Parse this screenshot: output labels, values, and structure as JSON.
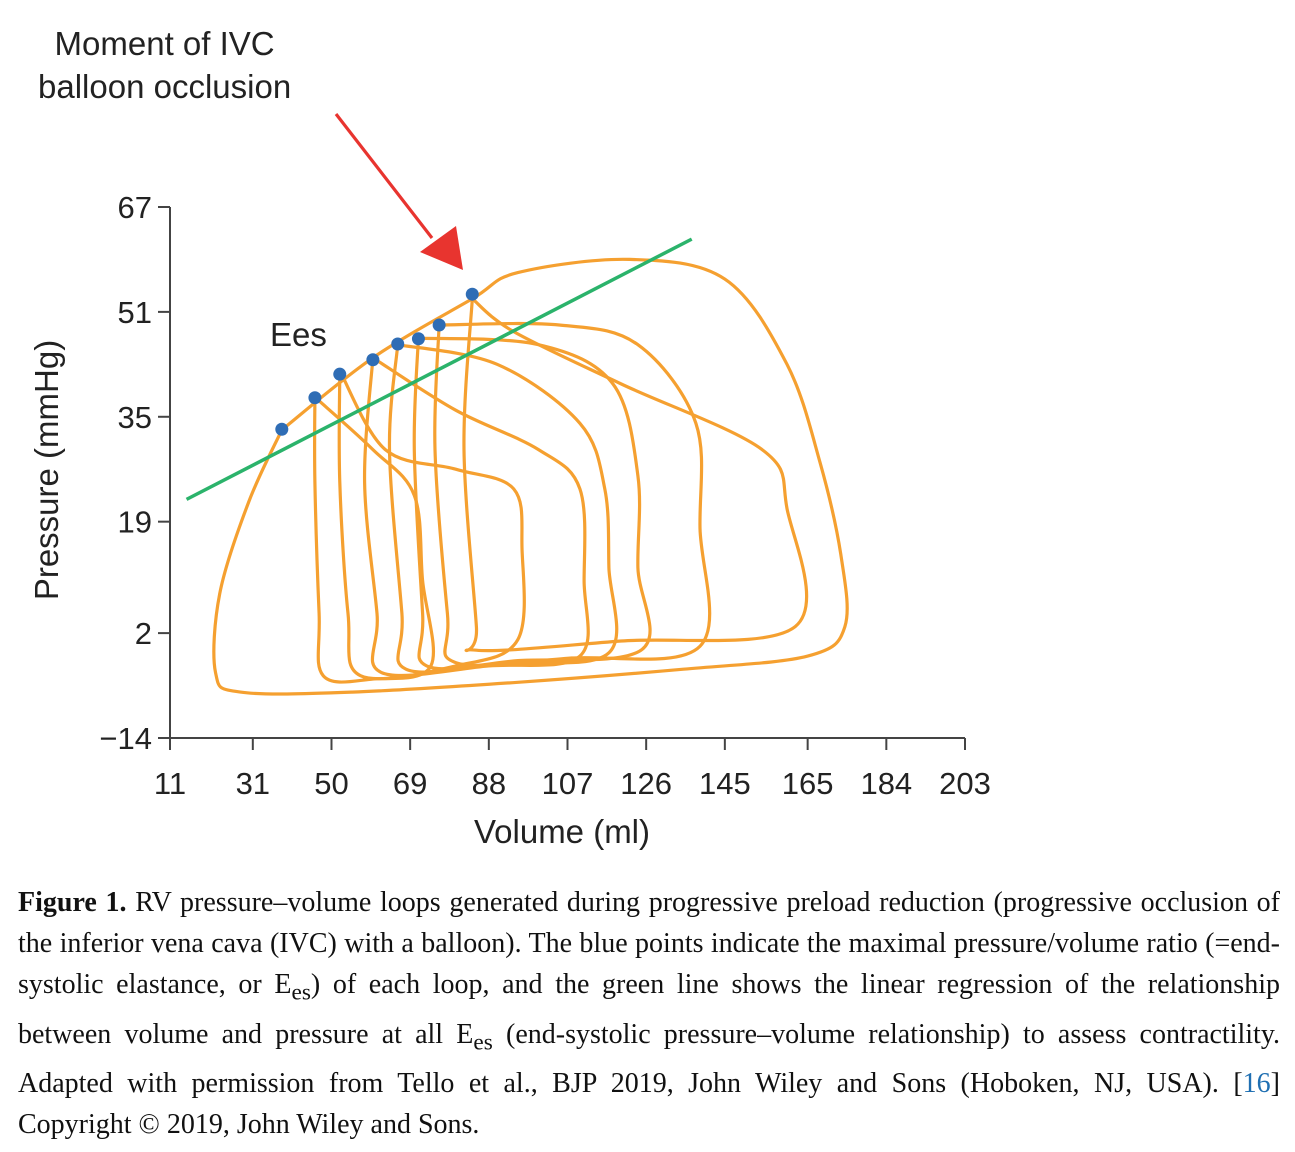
{
  "chart_data": {
    "type": "line",
    "title": "",
    "xlabel": "Volume (ml)",
    "ylabel": "Pressure (mmHg)",
    "x_ticks": [
      "11",
      "31",
      "50",
      "69",
      "88",
      "107",
      "126",
      "145",
      "165",
      "184",
      "203"
    ],
    "y_ticks": [
      "67",
      "51",
      "35",
      "19",
      "2",
      "−14"
    ],
    "xlim": [
      11,
      203
    ],
    "ylim": [
      -14,
      67
    ],
    "annotation": "Moment of IVC balloon occlusion",
    "line_label": "Ees",
    "colors": {
      "loops": "#f5a030",
      "espvr": "#2bb36b",
      "points": "#2f6db5",
      "arrow": "#e8342f",
      "axis": "#444444"
    },
    "espvr_line": {
      "x": [
        15,
        137
      ],
      "y": [
        22.4,
        62.1
      ]
    },
    "ees_points": [
      {
        "volume": 38,
        "pressure": 33.1
      },
      {
        "volume": 46,
        "pressure": 37.9
      },
      {
        "volume": 52,
        "pressure": 41.5
      },
      {
        "volume": 60,
        "pressure": 43.7
      },
      {
        "volume": 66,
        "pressure": 46.1
      },
      {
        "volume": 71,
        "pressure": 46.9
      },
      {
        "volume": 76,
        "pressure": 49
      },
      {
        "volume": 84,
        "pressure": 53.7
      }
    ],
    "loops": [
      {
        "name": "loop-1",
        "points": [
          [
            38,
            33
          ],
          [
            30,
            22
          ],
          [
            23,
            8
          ],
          [
            22,
            -4
          ],
          [
            28,
            -7
          ],
          [
            55,
            -7
          ],
          [
            95,
            -5.5
          ],
          [
            135,
            -3.5
          ],
          [
            165,
            -1.5
          ],
          [
            174,
            3
          ],
          [
            173,
            14
          ],
          [
            168,
            28
          ],
          [
            160,
            43
          ],
          [
            145,
            56
          ],
          [
            122,
            59
          ],
          [
            95,
            57
          ],
          [
            84,
            53
          ],
          [
            60,
            44
          ],
          [
            38,
            33
          ]
        ]
      },
      {
        "name": "loop-2",
        "points": [
          [
            84,
            53
          ],
          [
            94,
            48
          ],
          [
            120,
            40
          ],
          [
            154,
            30
          ],
          [
            160,
            21
          ],
          [
            162,
            3
          ],
          [
            120,
            0.8
          ],
          [
            85,
            -0.6
          ],
          [
            85,
            3
          ],
          [
            82,
            30
          ],
          [
            84,
            53
          ]
        ]
      },
      {
        "name": "loop-3",
        "points": [
          [
            76,
            49
          ],
          [
            105,
            49
          ],
          [
            124,
            46
          ],
          [
            138,
            34
          ],
          [
            139,
            18
          ],
          [
            139,
            0
          ],
          [
            108,
            -1.8
          ],
          [
            80,
            -2.5
          ],
          [
            78,
            5
          ],
          [
            75,
            30
          ],
          [
            76,
            49
          ]
        ]
      },
      {
        "name": "loop-4",
        "points": [
          [
            71,
            47
          ],
          [
            100,
            46
          ],
          [
            118,
            40
          ],
          [
            124,
            26
          ],
          [
            124,
            12
          ],
          [
            125,
            -0.5
          ],
          [
            95,
            -2.2
          ],
          [
            73,
            -3
          ],
          [
            72,
            5
          ],
          [
            70,
            30
          ],
          [
            71,
            47
          ]
        ]
      },
      {
        "name": "loop-5",
        "points": [
          [
            66,
            46
          ],
          [
            90,
            43
          ],
          [
            110,
            34
          ],
          [
            116,
            24
          ],
          [
            117,
            12
          ],
          [
            117,
            -1
          ],
          [
            92,
            -2.6
          ],
          [
            68,
            -3.5
          ],
          [
            67,
            5
          ],
          [
            64,
            30
          ],
          [
            66,
            46
          ]
        ]
      },
      {
        "name": "loop-6",
        "points": [
          [
            60,
            44
          ],
          [
            80,
            36
          ],
          [
            100,
            30
          ],
          [
            110,
            24
          ],
          [
            111,
            10
          ],
          [
            110,
            -1.5
          ],
          [
            88,
            -3
          ],
          [
            62,
            -4
          ],
          [
            61,
            5
          ],
          [
            58,
            25
          ],
          [
            60,
            44
          ]
        ]
      },
      {
        "name": "loop-7",
        "points": [
          [
            52,
            42
          ],
          [
            63,
            30
          ],
          [
            80,
            27
          ],
          [
            94,
            24
          ],
          [
            96,
            15
          ],
          [
            95,
            1
          ],
          [
            80,
            -3
          ],
          [
            57,
            -4.5
          ],
          [
            54,
            5
          ],
          [
            52,
            25
          ],
          [
            52,
            42
          ]
        ]
      },
      {
        "name": "loop-8",
        "points": [
          [
            46,
            38
          ],
          [
            60,
            30
          ],
          [
            70,
            23
          ],
          [
            72,
            10
          ],
          [
            74,
            -3
          ],
          [
            60,
            -5
          ],
          [
            48,
            -4.5
          ],
          [
            47,
            5
          ],
          [
            46,
            25
          ],
          [
            46,
            38
          ]
        ]
      }
    ]
  },
  "annotation_lines": [
    "Moment of IVC",
    "balloon occlusion"
  ],
  "caption": {
    "label": "Figure 1.",
    "text_1": " RV pressure–volume loops generated during progressive preload reduction (progressive occlusion of the inferior vena cava (IVC) with a balloon).  The blue points indicate the maximal pressure/volume ratio (=end-systolic elastance, or E",
    "sub_1": "es",
    "text_2": ") of each loop, and the green line shows the linear regression of the relationship between volume and pressure at all E",
    "sub_2": "es",
    "text_3": " (end-systolic pressure–volume relationship) to assess contractility. Adapted with permission from Tello et al., BJP 2019, John Wiley and Sons (Hoboken, NJ, USA). [",
    "ref": "16",
    "text_4": "] Copyright © 2019, John Wiley and Sons."
  }
}
